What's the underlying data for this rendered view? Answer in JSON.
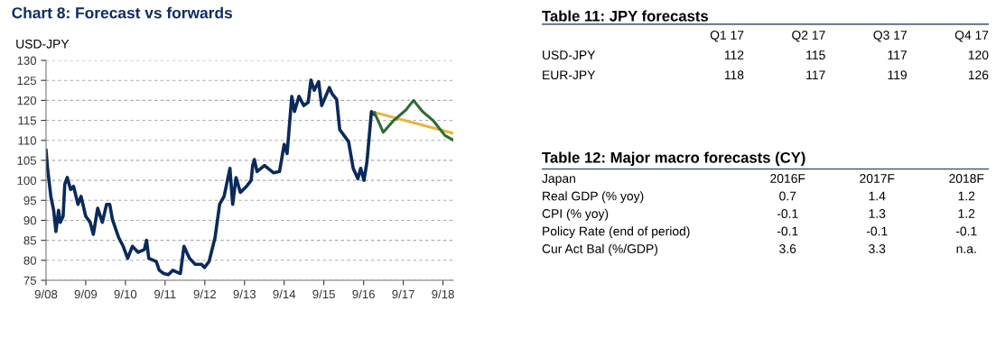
{
  "chart_data": [
    {
      "type": "line",
      "title": "Chart 8: Forecast vs forwards",
      "ylabel": "USD-JPY",
      "grid": "y",
      "line_style": "solid",
      "xlim": [
        "2008-09-01",
        "2018-12-05"
      ],
      "ylim": [
        75,
        130
      ],
      "yticks": [
        75,
        80,
        85,
        90,
        95,
        100,
        105,
        110,
        115,
        120,
        125,
        130
      ],
      "xticks": [
        {
          "value": "2008-09-01",
          "label": "9/08"
        },
        {
          "value": "2009-09-01",
          "label": "9/09"
        },
        {
          "value": "2010-09-01",
          "label": "9/10"
        },
        {
          "value": "2011-09-01",
          "label": "9/11"
        },
        {
          "value": "2012-09-01",
          "label": "9/12"
        },
        {
          "value": "2013-09-01",
          "label": "9/13"
        },
        {
          "value": "2014-09-01",
          "label": "9/14"
        },
        {
          "value": "2015-09-01",
          "label": "9/15"
        },
        {
          "value": "2016-09-01",
          "label": "9/16"
        },
        {
          "value": "2017-09-01",
          "label": "9/17"
        },
        {
          "value": "2018-09-01",
          "label": "9/18"
        }
      ],
      "series": [
        {
          "color": "#0b2a5b",
          "x": [
            "2008-09-01",
            "2008-09-15",
            "2008-10-15",
            "2008-11-10",
            "2008-12-01",
            "2008-12-25",
            "2009-01-10",
            "2009-02-05",
            "2009-02-20",
            "2009-03-15",
            "2009-04-15",
            "2009-05-12",
            "2009-06-22",
            "2009-07-20",
            "2009-09-01",
            "2009-10-12",
            "2009-11-10",
            "2009-12-20",
            "2010-02-01",
            "2010-03-12",
            "2010-04-10",
            "2010-05-05",
            "2010-07-01",
            "2010-08-12",
            "2010-09-22",
            "2010-11-04",
            "2010-12-28",
            "2011-02-22",
            "2011-03-15",
            "2011-04-04",
            "2011-06-12",
            "2011-07-10",
            "2011-08-20",
            "2011-10-01",
            "2011-11-12",
            "2011-12-22",
            "2012-01-20",
            "2012-02-22",
            "2012-04-12",
            "2012-06-05",
            "2012-08-01",
            "2012-08-28",
            "2012-10-10",
            "2012-12-04",
            "2013-01-15",
            "2013-02-25",
            "2013-04-20",
            "2013-05-15",
            "2013-06-15",
            "2013-07-25",
            "2013-09-20",
            "2013-11-01",
            "2013-11-15",
            "2013-12-01",
            "2013-12-25",
            "2014-03-04",
            "2014-05-25",
            "2014-07-20",
            "2014-09-01",
            "2014-09-28",
            "2014-11-10",
            "2014-12-05",
            "2015-01-15",
            "2015-02-28",
            "2015-04-10",
            "2015-05-05",
            "2015-06-04",
            "2015-07-15",
            "2015-08-12",
            "2015-10-22",
            "2015-11-15",
            "2015-12-28",
            "2016-01-25",
            "2016-03-05",
            "2016-04-15",
            "2016-05-28",
            "2016-07-10",
            "2016-08-05",
            "2016-09-04",
            "2016-10-01",
            "2016-11-12",
            "2016-12-10"
          ],
          "values": [
            107.5,
            103,
            96,
            92.5,
            87.2,
            92.5,
            89.5,
            91,
            99,
            100.7,
            97.7,
            98.5,
            94,
            96,
            91,
            89.5,
            86.5,
            93,
            89.5,
            94,
            94,
            90.2,
            85.7,
            83.5,
            80.5,
            83.5,
            82,
            82.7,
            85,
            80.5,
            79.7,
            77.5,
            76.7,
            76.4,
            77.5,
            77,
            76.7,
            83.5,
            80.5,
            79,
            79,
            78.2,
            79.7,
            85.7,
            94,
            96,
            103,
            94,
            100.7,
            97,
            98.5,
            100,
            103.7,
            105.2,
            102.2,
            103.7,
            101.9,
            102.2,
            109,
            106.7,
            121,
            117.2,
            121,
            118.7,
            119.5,
            125.1,
            122.5,
            124.7,
            118.7,
            123.2,
            121.7,
            120.2,
            112.7,
            111.2,
            109.7,
            103,
            100.4,
            103,
            100,
            104.5,
            117.2,
            116.5
          ]
        },
        {
          "color": "#e8b53c",
          "x": [
            "2016-12-10",
            "2018-12-01"
          ],
          "values": [
            117,
            111.8
          ]
        },
        {
          "color": "#2e6b30",
          "x": [
            "2016-12-10",
            "2017-03-01",
            "2017-06-05",
            "2017-09-25",
            "2017-12-04",
            "2018-02-25",
            "2018-06-01",
            "2018-09-20",
            "2018-12-01"
          ],
          "values": [
            116.9,
            112,
            115,
            117.6,
            120,
            117.2,
            115,
            111.2,
            110.1
          ]
        }
      ]
    },
    {
      "type": "other",
      "title": "Table 11: JPY forecasts",
      "categories": [
        "Q1 17",
        "Q2 17",
        "Q3 17",
        "Q4 17"
      ],
      "y_categories": [
        "USD-JPY",
        "EUR-JPY"
      ],
      "cell_labels": [
        [
          "112",
          "115",
          "117",
          "120"
        ],
        [
          "118",
          "117",
          "119",
          "126"
        ]
      ]
    },
    {
      "type": "other",
      "title": "Table 12: Major macro forecasts (CY)",
      "ylabel": "Japan",
      "categories": [
        "2016F",
        "2017F",
        "2018F"
      ],
      "y_categories": [
        "Real GDP (% yoy)",
        "CPI (% yoy)",
        "Policy Rate (end of period)",
        "Cur Act Bal (%/GDP)"
      ],
      "cell_labels": [
        [
          "0.7",
          "1.4",
          "1.2"
        ],
        [
          "-0.1",
          "1.3",
          "1.2"
        ],
        [
          "-0.1",
          "-0.1",
          "-0.1"
        ],
        [
          "3.6",
          "3.3",
          "n.a."
        ]
      ]
    }
  ]
}
